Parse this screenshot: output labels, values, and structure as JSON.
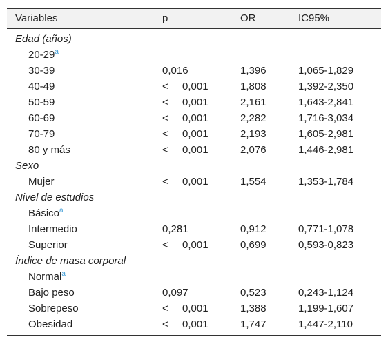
{
  "table": {
    "header": [
      "Variables",
      "p",
      "OR",
      "IC95%"
    ],
    "groups": [
      {
        "title": "Edad (años)",
        "rows": [
          {
            "label": "20-29",
            "sup": "a"
          },
          {
            "label": "30-39",
            "p": "0,016",
            "or": "1,396",
            "ci": "1,065-1,829"
          },
          {
            "label": "40-49",
            "p_sign": "<",
            "p": "0,001",
            "or": "1,808",
            "ci": "1,392-2,350"
          },
          {
            "label": "50-59",
            "p_sign": "<",
            "p": "0,001",
            "or": "2,161",
            "ci": "1,643-2,841"
          },
          {
            "label": "60-69",
            "p_sign": "<",
            "p": "0,001",
            "or": "2,282",
            "ci": "1,716-3,034"
          },
          {
            "label": "70-79",
            "p_sign": "<",
            "p": "0,001",
            "or": "2,193",
            "ci": "1,605-2,981"
          },
          {
            "label": "80 y más",
            "p_sign": "<",
            "p": "0,001",
            "or": "2,076",
            "ci": "1,446-2,981"
          }
        ]
      },
      {
        "title": "Sexo",
        "rows": [
          {
            "label": "Mujer",
            "p_sign": "<",
            "p": "0,001",
            "or": "1,554",
            "ci": "1,353-1,784"
          }
        ]
      },
      {
        "title": "Nivel de estudios",
        "rows": [
          {
            "label": "Básico",
            "sup": "a"
          },
          {
            "label": "Intermedio",
            "p": "0,281",
            "or": "0,912",
            "ci": "0,771-1,078"
          },
          {
            "label": "Superior",
            "p_sign": "<",
            "p": "0,001",
            "or": "0,699",
            "ci": "0,593-0,823"
          }
        ]
      },
      {
        "title": "Índice de masa corporal",
        "rows": [
          {
            "label": "Normal",
            "sup": "a"
          },
          {
            "label": "Bajo peso",
            "p": "0,097",
            "or": "0,523",
            "ci": "0,243-1,124"
          },
          {
            "label": "Sobrepeso",
            "p_sign": "<",
            "p": "0,001",
            "or": "1,388",
            "ci": "1,199-1,607"
          },
          {
            "label": "Obesidad",
            "p_sign": "<",
            "p": "0,001",
            "or": "1,747",
            "ci": "1,447-2,110"
          }
        ]
      }
    ]
  }
}
